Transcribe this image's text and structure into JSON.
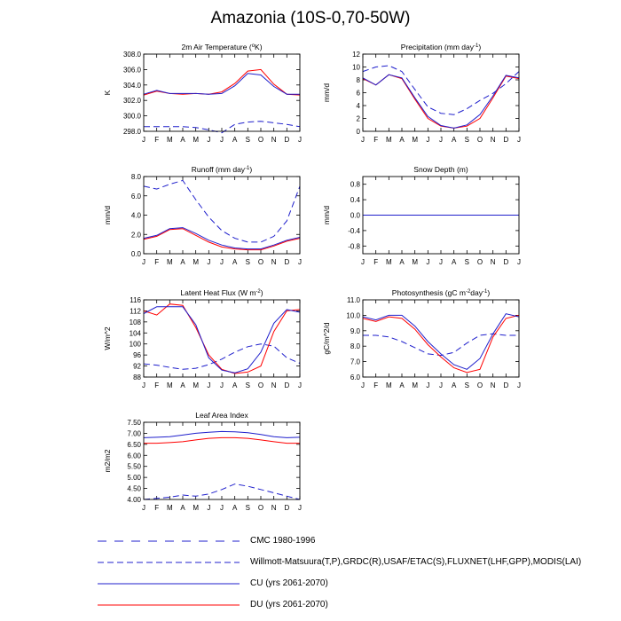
{
  "title": "Amazonia (10S-0,70-50W)",
  "months": [
    "J",
    "F",
    "M",
    "A",
    "M",
    "J",
    "J",
    "A",
    "S",
    "O",
    "N",
    "D",
    "J"
  ],
  "legend": [
    {
      "label": "CMC 1980-1996",
      "color": "#1f1fcc",
      "style": "long-dash"
    },
    {
      "label": "Willmott-Matsuura(T,P),GRDC(R),USAF/ETAC(S),FLUXNET(LHF,GPP),MODIS(LAI)",
      "color": "#1f1fcc",
      "style": "dash"
    },
    {
      "label": "CU (yrs 2061-2070)",
      "color": "#1f1fcc",
      "style": "solid"
    },
    {
      "label": "DU (yrs 2061-2070)",
      "color": "#ff0000",
      "style": "solid"
    }
  ],
  "chart_data": [
    {
      "type": "line",
      "title": "2m Air Temperature (",
      "title_sup": "o",
      "title_tail": "K)",
      "ylabel": "K",
      "ylim": [
        298,
        308
      ],
      "yticks": [
        "298.0",
        "300.0",
        "302.0",
        "304.0",
        "306.0",
        "308.0"
      ],
      "ytick_values": [
        298,
        300,
        302,
        304,
        306,
        308
      ],
      "series": [
        {
          "values": [
            298.6,
            298.6,
            298.6,
            298.6,
            298.5,
            298.2,
            297.8,
            298.9,
            299.2,
            299.3,
            299.1,
            298.9,
            298.6
          ],
          "color": "#1f1fcc",
          "dash": "dash"
        },
        {
          "values": [
            302.7,
            303.2,
            302.9,
            302.8,
            302.9,
            302.8,
            303.1,
            304.2,
            305.8,
            306.0,
            304.1,
            302.8,
            302.7
          ],
          "color": "#ff0000",
          "dash": "solid"
        },
        {
          "values": [
            302.8,
            303.3,
            302.9,
            302.9,
            302.9,
            302.8,
            302.9,
            303.9,
            305.5,
            305.3,
            303.8,
            302.8,
            302.8
          ],
          "color": "#1f1fcc",
          "dash": "solid"
        }
      ]
    },
    {
      "type": "line",
      "title": "Precipitation (mm day",
      "title_sup": "-1",
      "title_tail": ")",
      "ylabel": "mm/d",
      "ylim": [
        0,
        12
      ],
      "yticks": [
        "0",
        "2",
        "4",
        "6",
        "8",
        "10",
        "12"
      ],
      "ytick_values": [
        0,
        2,
        4,
        6,
        8,
        10,
        12
      ],
      "series": [
        {
          "values": [
            9.3,
            10.0,
            10.2,
            9.3,
            6.5,
            3.8,
            2.8,
            2.6,
            3.5,
            4.8,
            5.9,
            7.4,
            9.3
          ],
          "color": "#1f1fcc",
          "dash": "dash"
        },
        {
          "values": [
            8.2,
            7.2,
            8.8,
            8.2,
            5.0,
            2.0,
            0.8,
            0.5,
            0.8,
            2.0,
            5.2,
            8.6,
            8.2
          ],
          "color": "#ff0000",
          "dash": "solid"
        },
        {
          "values": [
            8.3,
            7.2,
            8.8,
            8.3,
            5.2,
            2.3,
            0.9,
            0.5,
            1.0,
            2.6,
            5.5,
            8.7,
            8.3
          ],
          "color": "#1f1fcc",
          "dash": "solid"
        }
      ]
    },
    {
      "type": "line",
      "title": "Runoff (mm day",
      "title_sup": "-1",
      "title_tail": ")",
      "ylabel": "mm/d",
      "ylim": [
        0,
        8
      ],
      "yticks": [
        "0.0",
        "2.0",
        "4.0",
        "6.0",
        "8.0"
      ],
      "ytick_values": [
        0,
        2,
        4,
        6,
        8
      ],
      "series": [
        {
          "values": [
            7.0,
            6.7,
            7.2,
            7.6,
            5.6,
            3.8,
            2.4,
            1.6,
            1.2,
            1.2,
            1.8,
            3.4,
            7.0
          ],
          "color": "#1f1fcc",
          "dash": "dash"
        },
        {
          "values": [
            1.5,
            1.8,
            2.5,
            2.6,
            1.9,
            1.2,
            0.7,
            0.5,
            0.4,
            0.4,
            0.8,
            1.3,
            1.6
          ],
          "color": "#ff0000",
          "dash": "solid"
        },
        {
          "values": [
            1.6,
            1.9,
            2.6,
            2.7,
            2.1,
            1.4,
            0.9,
            0.6,
            0.5,
            0.5,
            0.9,
            1.4,
            1.7
          ],
          "color": "#1f1fcc",
          "dash": "solid"
        }
      ]
    },
    {
      "type": "line",
      "title": "Snow Depth (m)",
      "title_sup": "",
      "title_tail": "",
      "ylabel": "mm/d",
      "ylim": [
        -1,
        1
      ],
      "yticks": [
        "-0.8",
        "-0.4",
        "0.0",
        "0.4",
        "0.8"
      ],
      "ytick_values": [
        -0.8,
        -0.4,
        0,
        0.4,
        0.8
      ],
      "series": [
        {
          "values": [
            0,
            0,
            0,
            0,
            0,
            0,
            0,
            0,
            0,
            0,
            0,
            0,
            0
          ],
          "color": "#ff0000",
          "dash": "solid"
        },
        {
          "values": [
            0,
            0,
            0,
            0,
            0,
            0,
            0,
            0,
            0,
            0,
            0,
            0,
            0
          ],
          "color": "#1f1fcc",
          "dash": "solid"
        }
      ]
    },
    {
      "type": "line",
      "title": "Latent Heat Flux (W m",
      "title_sup": "-2",
      "title_tail": ")",
      "ylabel": "W/m^2",
      "ylim": [
        88,
        116
      ],
      "yticks": [
        "88",
        "92",
        "96",
        "100",
        "104",
        "108",
        "112",
        "116"
      ],
      "ytick_values": [
        88,
        92,
        96,
        100,
        104,
        108,
        112,
        116
      ],
      "series": [
        {
          "values": [
            92.8,
            92.3,
            91.5,
            90.8,
            91.2,
            92.5,
            94.5,
            97.0,
            99.0,
            100.0,
            99.2,
            95.0,
            93.0
          ],
          "color": "#1f1fcc",
          "dash": "dash"
        },
        {
          "values": [
            112.0,
            110.5,
            114.5,
            114.0,
            106.0,
            96.0,
            90.8,
            89.3,
            89.8,
            92.0,
            104.5,
            112.0,
            112.5
          ],
          "color": "#ff0000",
          "dash": "solid"
        },
        {
          "values": [
            111.0,
            113.5,
            113.5,
            113.5,
            107.0,
            95.0,
            90.5,
            89.5,
            91.0,
            97.0,
            107.5,
            112.5,
            111.5
          ],
          "color": "#1f1fcc",
          "dash": "solid"
        }
      ]
    },
    {
      "type": "line",
      "title": "Photosynthesis (gC m",
      "title_sup": "-2",
      "title_tail": "day",
      "title_sup2": "-1",
      "title_tail2": ")",
      "ylabel": "gC/m^2/d",
      "ylim": [
        6,
        11
      ],
      "yticks": [
        "6.0",
        "7.0",
        "8.0",
        "9.0",
        "10.0",
        "11.0"
      ],
      "ytick_values": [
        6,
        7,
        8,
        9,
        10,
        11
      ],
      "series": [
        {
          "values": [
            8.7,
            8.7,
            8.6,
            8.3,
            7.9,
            7.5,
            7.4,
            7.6,
            8.2,
            8.7,
            8.8,
            8.7,
            8.7
          ],
          "color": "#1f1fcc",
          "dash": "dash"
        },
        {
          "values": [
            9.8,
            9.6,
            9.9,
            9.8,
            9.1,
            8.1,
            7.3,
            6.6,
            6.3,
            6.5,
            8.6,
            9.8,
            10.0
          ],
          "color": "#ff0000",
          "dash": "solid"
        },
        {
          "values": [
            9.9,
            9.7,
            10.0,
            10.0,
            9.3,
            8.3,
            7.5,
            6.8,
            6.5,
            7.2,
            8.8,
            10.1,
            9.9
          ],
          "color": "#1f1fcc",
          "dash": "solid"
        }
      ]
    },
    {
      "type": "line",
      "title": "Leaf Area Index",
      "title_sup": "",
      "title_tail": "",
      "ylabel": "m2/m2",
      "ylim": [
        4,
        7.5
      ],
      "yticks": [
        "4.00",
        "4.50",
        "5.00",
        "5.50",
        "6.00",
        "6.50",
        "7.00",
        "7.50"
      ],
      "ytick_values": [
        4,
        4.5,
        5,
        5.5,
        6,
        6.5,
        7,
        7.5
      ],
      "series": [
        {
          "values": [
            4.0,
            4.05,
            4.1,
            4.2,
            4.15,
            4.25,
            4.45,
            4.7,
            4.6,
            4.45,
            4.3,
            4.15,
            4.0
          ],
          "color": "#1f1fcc",
          "dash": "dash"
        },
        {
          "values": [
            6.55,
            6.55,
            6.58,
            6.62,
            6.7,
            6.77,
            6.8,
            6.8,
            6.77,
            6.7,
            6.62,
            6.55,
            6.55
          ],
          "color": "#ff0000",
          "dash": "solid"
        },
        {
          "values": [
            6.8,
            6.82,
            6.85,
            6.92,
            7.0,
            7.05,
            7.08,
            7.07,
            7.03,
            6.95,
            6.85,
            6.8,
            6.82
          ],
          "color": "#1f1fcc",
          "dash": "solid"
        }
      ]
    }
  ]
}
